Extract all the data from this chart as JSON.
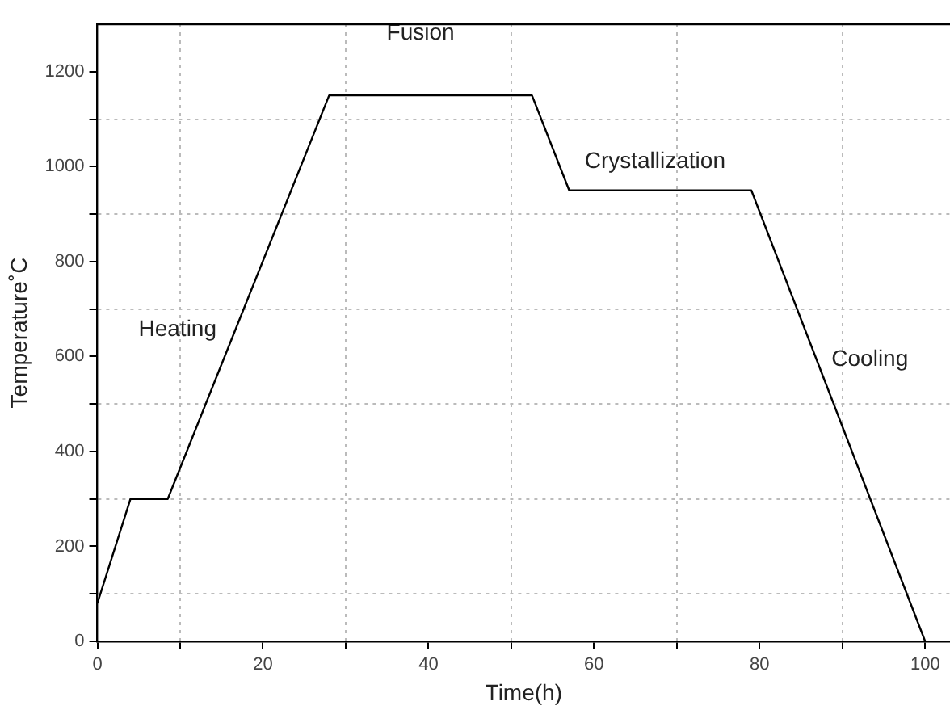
{
  "chart_data": {
    "type": "line",
    "xlabel": "Time(h)",
    "ylabel": "Temperature˚C",
    "x": [
      0,
      4,
      8.5,
      28,
      52.5,
      57,
      79,
      100
    ],
    "series": [
      {
        "color": "#000000",
        "values": [
          80,
          300,
          300,
          1150,
          1150,
          950,
          950,
          0
        ]
      }
    ],
    "xlim": [
      0,
      103
    ],
    "ylim": [
      0,
      1300
    ],
    "xticks": [
      0,
      {
        "value": 10,
        "label": null
      },
      20,
      {
        "value": 30,
        "label": null
      },
      40,
      {
        "value": 50,
        "label": null
      },
      60,
      {
        "value": 70,
        "label": null
      },
      80,
      {
        "value": 90,
        "label": null
      },
      100
    ],
    "yticks": [
      0,
      {
        "value": 100,
        "label": null
      },
      200,
      {
        "value": 300,
        "label": null
      },
      400,
      {
        "value": 500,
        "label": null
      },
      600,
      {
        "value": 700,
        "label": null
      },
      800,
      {
        "value": 900,
        "label": null
      },
      1000,
      {
        "value": 1100,
        "label": null
      },
      1200
    ],
    "grid": true,
    "marker": "none",
    "line_style": "solid",
    "legend": false,
    "annotations": [
      "Heating",
      "Fusion",
      "Crystallization",
      "Cooling"
    ]
  }
}
